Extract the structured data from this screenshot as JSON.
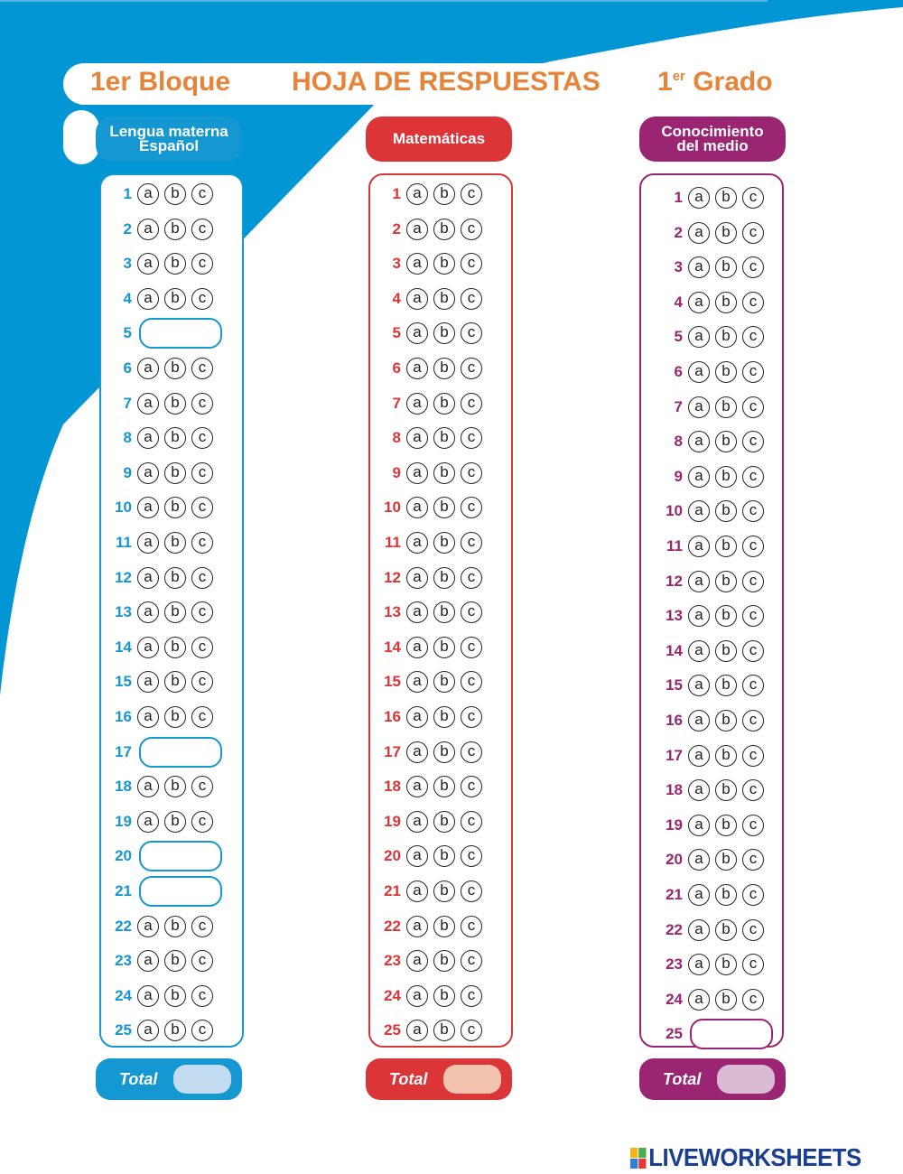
{
  "header": {
    "block": "1er Bloque",
    "title": "HOJA DE RESPUESTAS",
    "grade_num": "1",
    "grade_sup": "er",
    "grade_word": "Grado"
  },
  "colors": {
    "background_blue": "#0396d4",
    "header_orange": "#e8843a"
  },
  "columns": [
    {
      "id": "espanol",
      "subject_line1": "Lengua materna",
      "subject_line2": "Español",
      "color": "#1597d1",
      "total_fill": "#c3dcef",
      "total_label": "Total",
      "text_input_rows": [
        5,
        17,
        20,
        21
      ]
    },
    {
      "id": "matematicas",
      "subject_line1": "Matemáticas",
      "subject_line2": "",
      "color": "#dc3538",
      "total_fill": "#f2c3ae",
      "total_label": "Total",
      "text_input_rows": []
    },
    {
      "id": "conocimiento",
      "subject_line1": "Conocimiento",
      "subject_line2": "del medio",
      "color": "#9a2573",
      "total_fill": "#d9bcd4",
      "total_label": "Total",
      "text_input_rows": [
        25
      ]
    }
  ],
  "question_count": 25,
  "options": [
    "a",
    "b",
    "c"
  ],
  "footer": {
    "logo_text": "LIVEWORKSHEETS"
  }
}
